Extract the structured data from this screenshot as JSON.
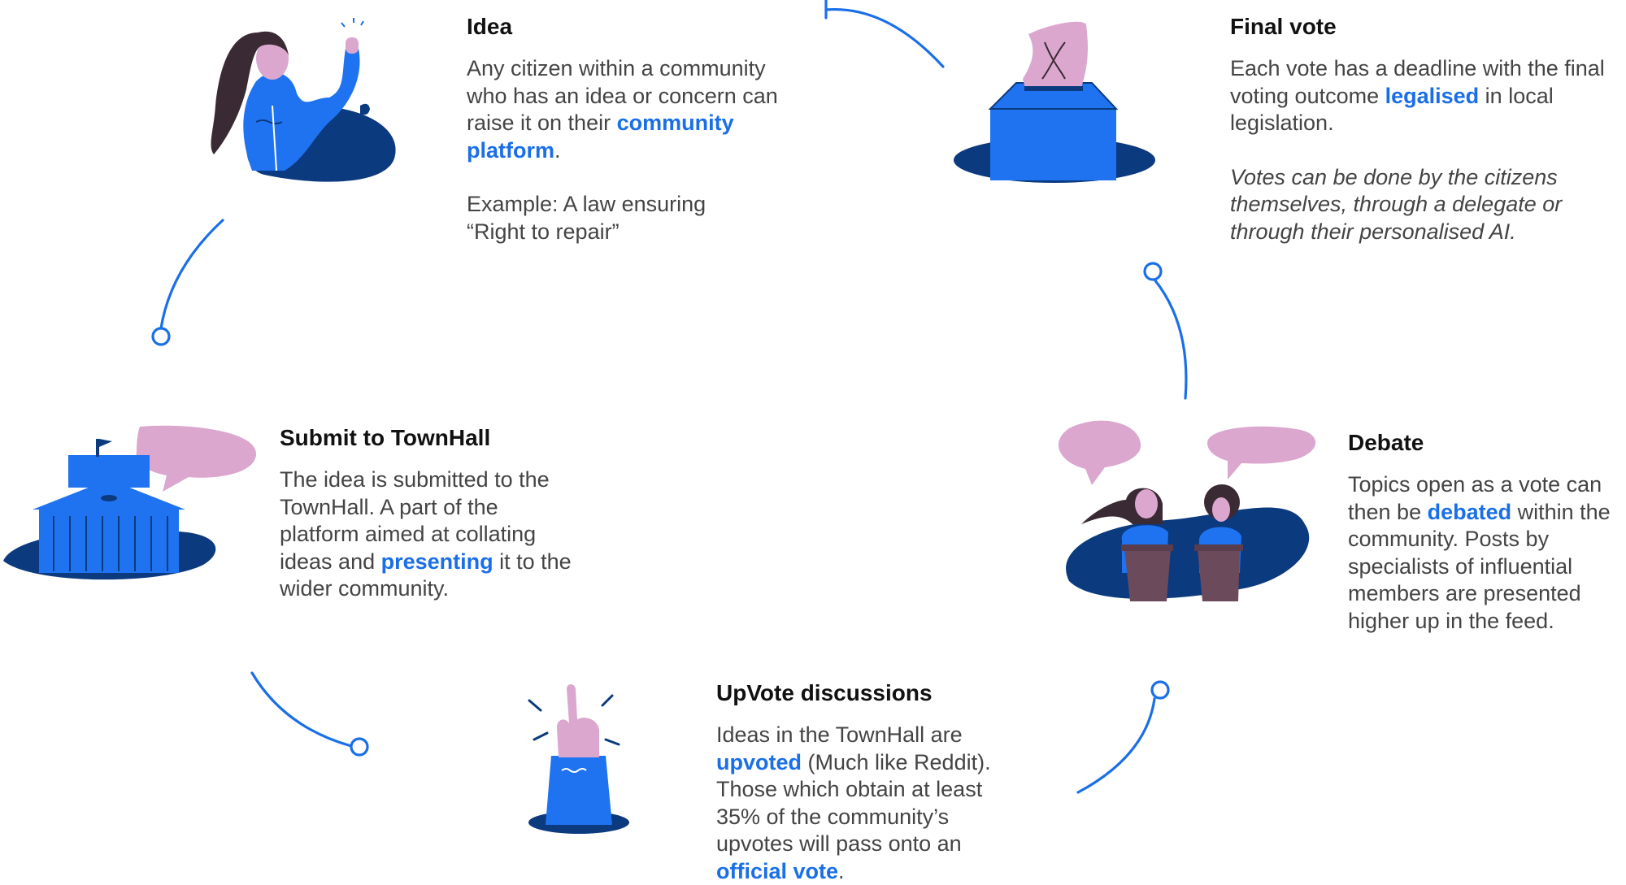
{
  "colors": {
    "accent": "#1a6fe8",
    "bright_blue": "#1f73f0",
    "navy": "#0b3a7e",
    "pink": "#dca7cf",
    "dark_hair": "#3a2a33",
    "lectern": "#6b4a5b"
  },
  "steps": {
    "idea": {
      "title": "Idea",
      "p1": {
        "pre": "Any citizen within a community who has an idea or concern can raise it on their ",
        "hl": "community platform",
        "post": "."
      },
      "p2": "Example: A law ensuring “Right to repair”",
      "illustration": "woman-raising-hand-icon"
    },
    "submit": {
      "title": "Submit to TownHall",
      "p1": {
        "pre": "The idea is submitted to the TownHall. A part of the platform aimed at collating ideas and ",
        "hl": "presenting",
        "post": " it to the wider community."
      },
      "illustration": "townhall-building-icon"
    },
    "upvote": {
      "title": "UpVote discussions",
      "p1": {
        "pre": "Ideas in the TownHall are ",
        "hl": "upvoted",
        "mid": " (Much like Reddit). Those which obtain at least 35% of the community’s upvotes will pass onto an ",
        "hl2": "official vote",
        "post": "."
      },
      "illustration": "raised-finger-hand-icon"
    },
    "debate": {
      "title": "Debate",
      "p1": {
        "pre": "Topics open as a vote can then be ",
        "hl": "debated",
        "post": " within the community. Posts by specialists of influential members are presented higher up in the feed."
      },
      "illustration": "debaters-at-lecterns-icon"
    },
    "final": {
      "title": "Final vote",
      "p1": {
        "pre": "Each vote has a deadline with the final voting outcome ",
        "hl": "legalised",
        "post": " in local legislation."
      },
      "p2": "Votes can be done by the citizens themselves, through a delegate or through their personalised AI.",
      "illustration": "ballot-box-icon"
    }
  }
}
